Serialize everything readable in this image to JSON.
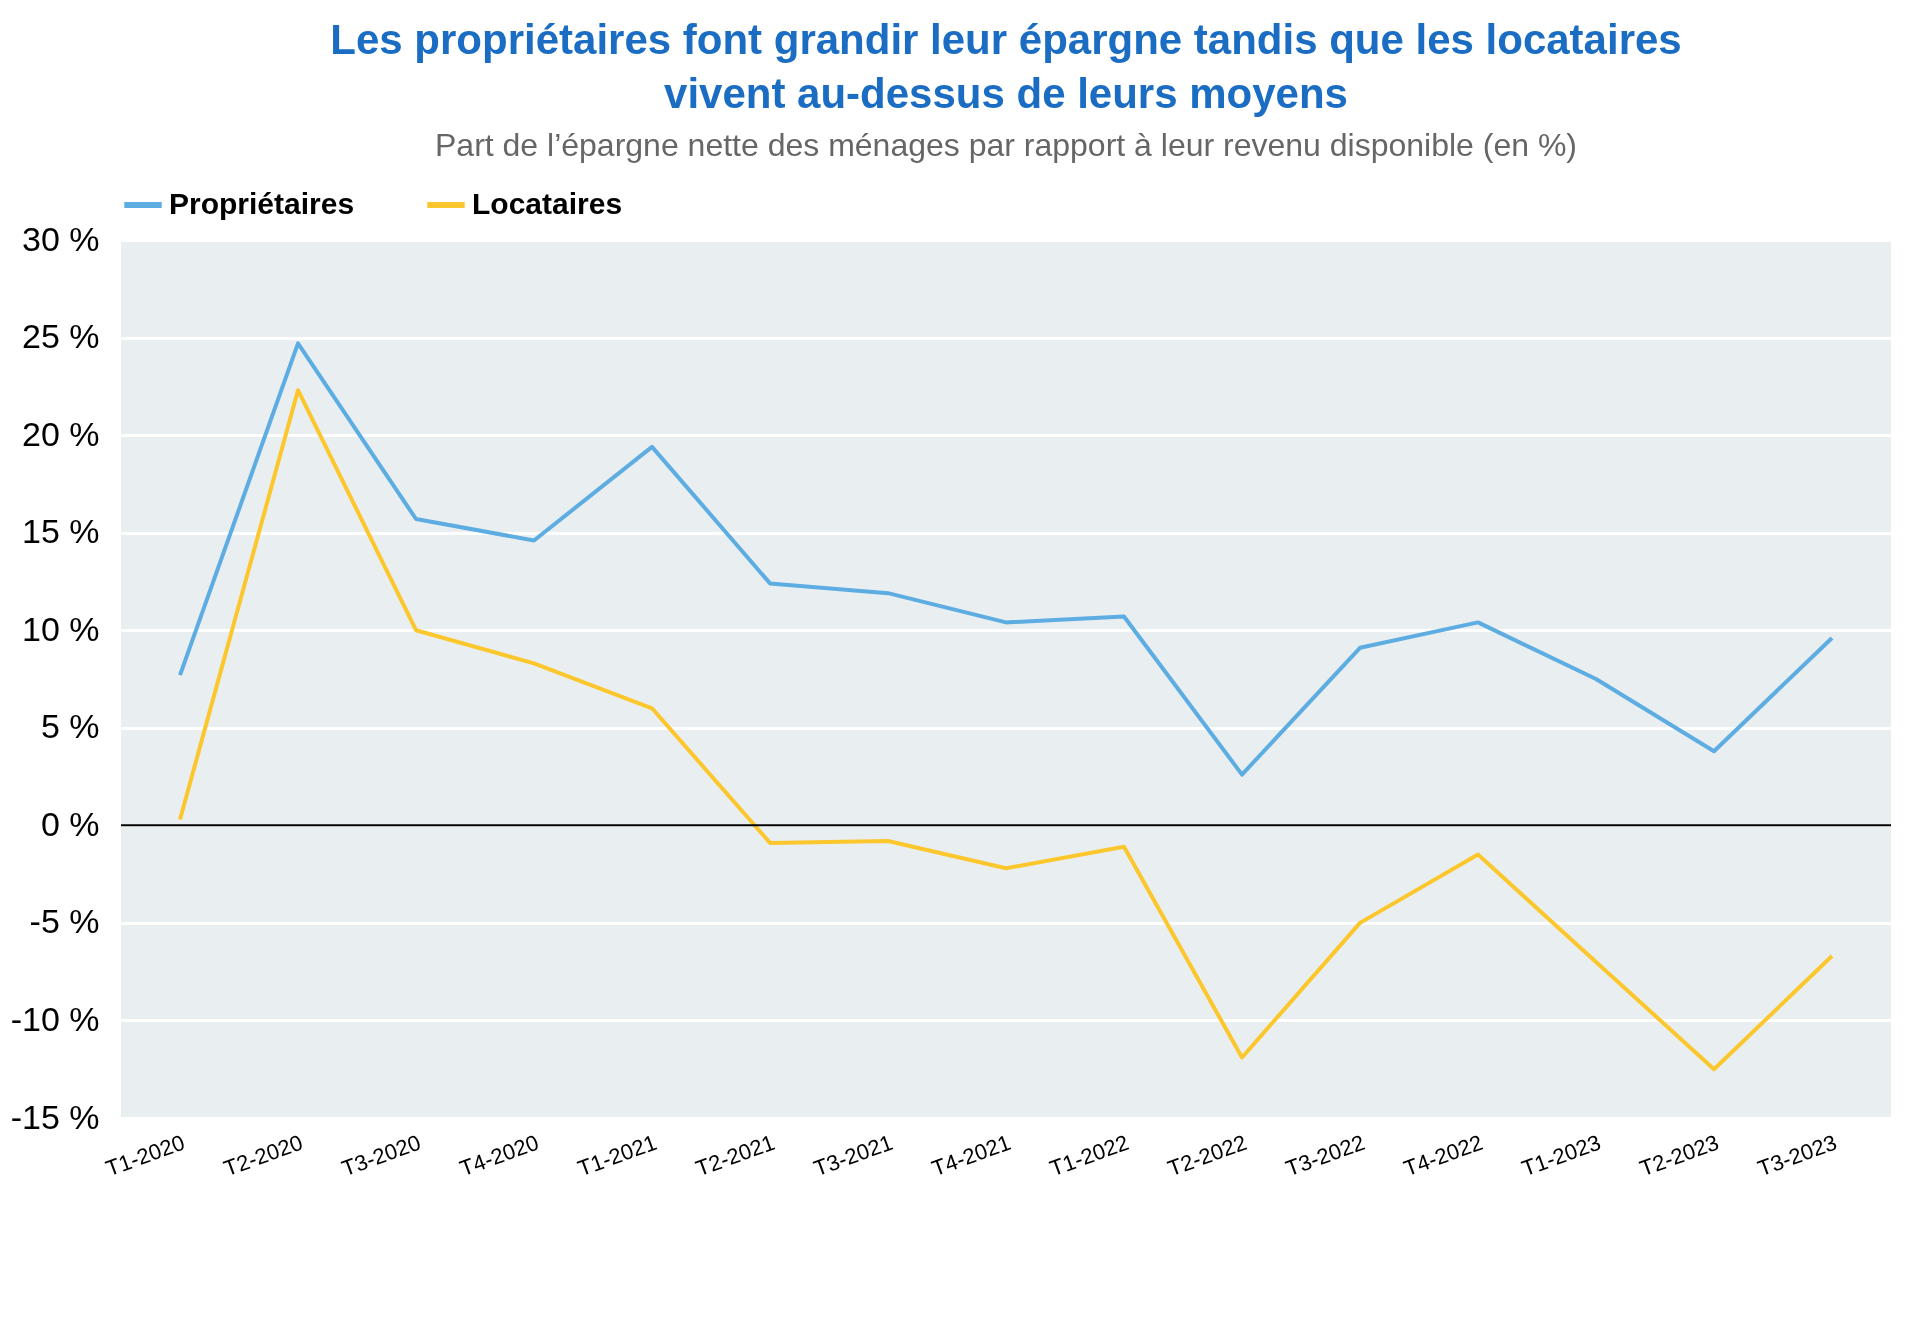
{
  "chart_data": {
    "type": "line",
    "title": "Les propriétaires font grandir leur épargne tandis que les locataires vivent au-dessus de leurs moyens",
    "subtitle": "Part de l’épargne nette des ménages par rapport à leur revenu disponible (en %)",
    "categories": [
      "T1-2020",
      "T2-2020",
      "T3-2020",
      "T4-2020",
      "T1-2021",
      "T2-2021",
      "T3-2021",
      "T4-2021",
      "T1-2022",
      "T2-2022",
      "T3-2022",
      "T4-2022",
      "T1-2023",
      "T2-2023",
      "T3-2023"
    ],
    "series": [
      {
        "name": "Propriétaires",
        "color": "#5dade2",
        "values": [
          7.7,
          24.7,
          15.7,
          14.6,
          19.4,
          12.4,
          11.9,
          10.4,
          10.7,
          2.6,
          9.1,
          10.4,
          7.5,
          3.8,
          9.6
        ]
      },
      {
        "name": "Locataires",
        "color": "#fcc72c",
        "values": [
          0.3,
          22.3,
          10.0,
          8.3,
          6.0,
          -0.9,
          -0.8,
          -2.2,
          -1.1,
          -11.9,
          -5.0,
          -1.5,
          -7.0,
          -12.5,
          -6.7
        ]
      }
    ],
    "ylim": [
      -15,
      30
    ],
    "yticks": [
      {
        "value": -15,
        "label": "-15 %"
      },
      {
        "value": -10,
        "label": "-10 %"
      },
      {
        "value": -5,
        "label": "-5 %"
      },
      {
        "value": 0,
        "label": "0 %"
      },
      {
        "value": 5,
        "label": "5 %"
      },
      {
        "value": 10,
        "label": "10 %"
      },
      {
        "value": 15,
        "label": "15 %"
      },
      {
        "value": 20,
        "label": "20 %"
      },
      {
        "value": 25,
        "label": "25 %"
      },
      {
        "value": 30,
        "label": "30 %"
      }
    ],
    "ref_lines": [
      {
        "axis": "y",
        "value": 0,
        "color": "#000000"
      }
    ],
    "grid": "y",
    "legend": "top"
  }
}
